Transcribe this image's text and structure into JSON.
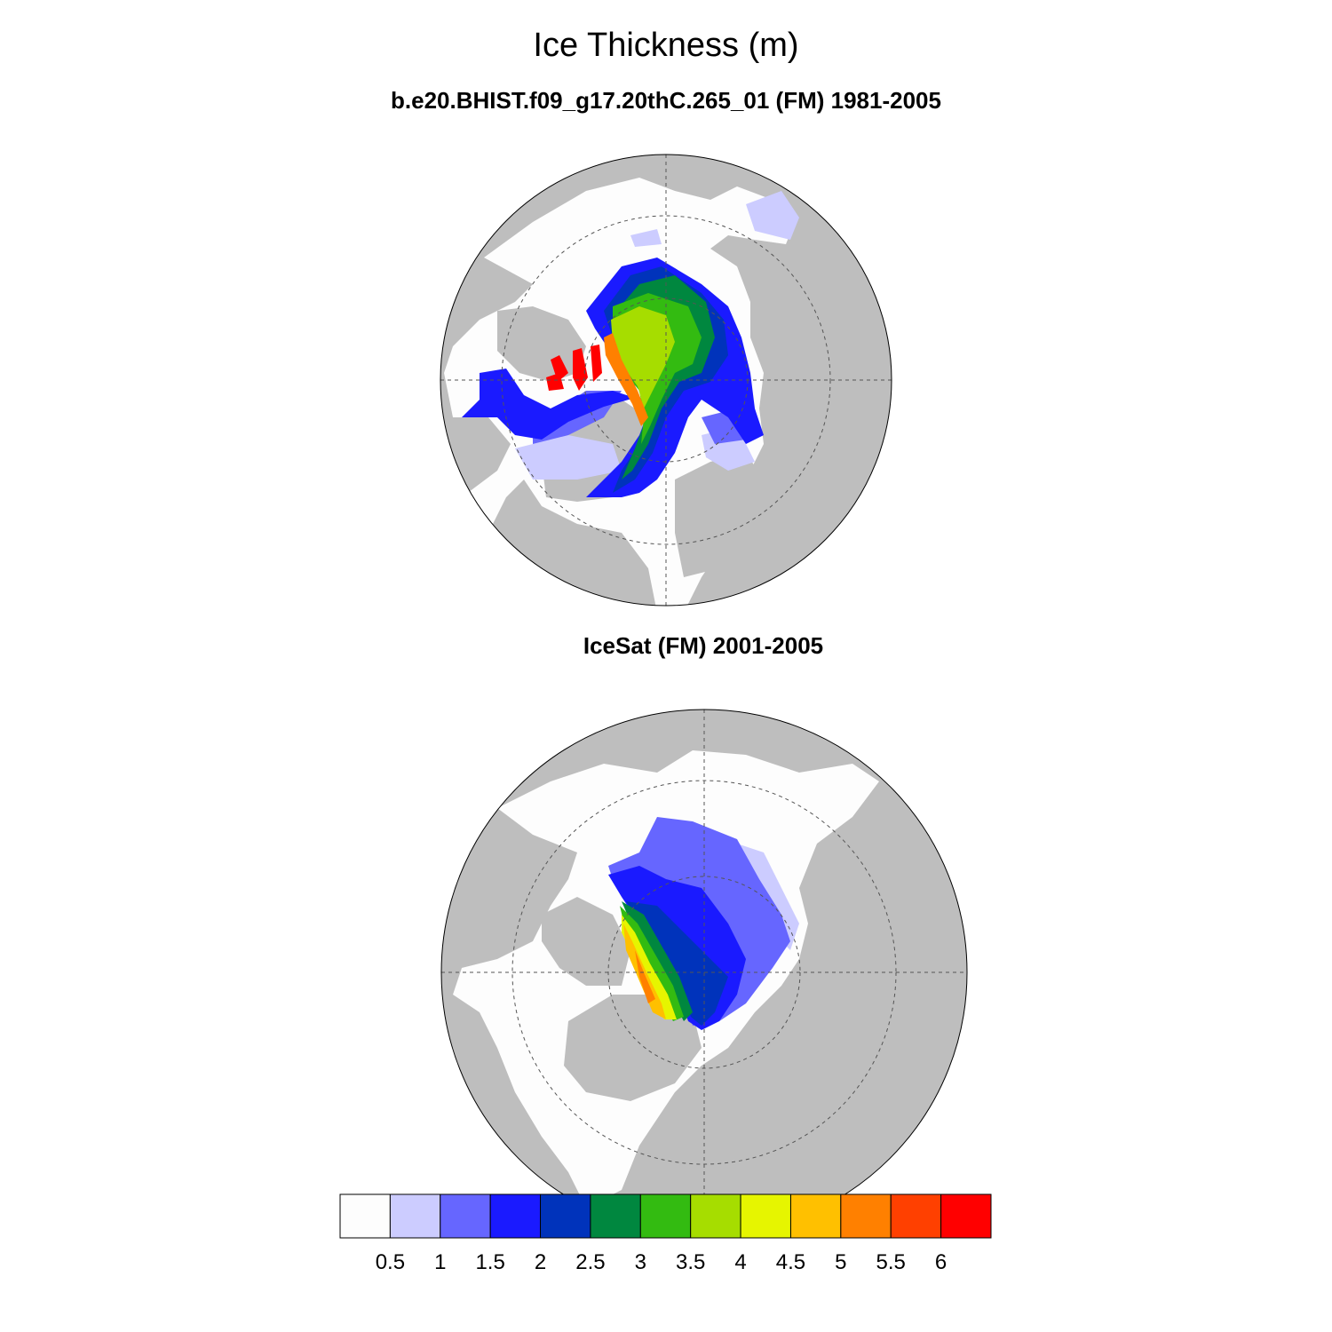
{
  "title": "Ice Thickness (m)",
  "panels": [
    {
      "title": "b.e20.BHIST.f09_g17.20thC.265_01 (FM) 1981-2005"
    },
    {
      "title": "IceSat (FM) 2001-2005"
    }
  ],
  "colorbar": {
    "labels": [
      "0.5",
      "1",
      "1.5",
      "2",
      "2.5",
      "3",
      "3.5",
      "4",
      "4.5",
      "5",
      "5.5",
      "6"
    ],
    "colors": [
      "#fdfdfd",
      "#ccccff",
      "#6666ff",
      "#1a1aff",
      "#0033bb",
      "#00873f",
      "#33bb11",
      "#a6dd00",
      "#e6f500",
      "#ffc000",
      "#ff8000",
      "#ff4000",
      "#ff0000"
    ]
  },
  "colors": {
    "land": "#bebebe",
    "open_water": "#fdfdfd"
  }
}
